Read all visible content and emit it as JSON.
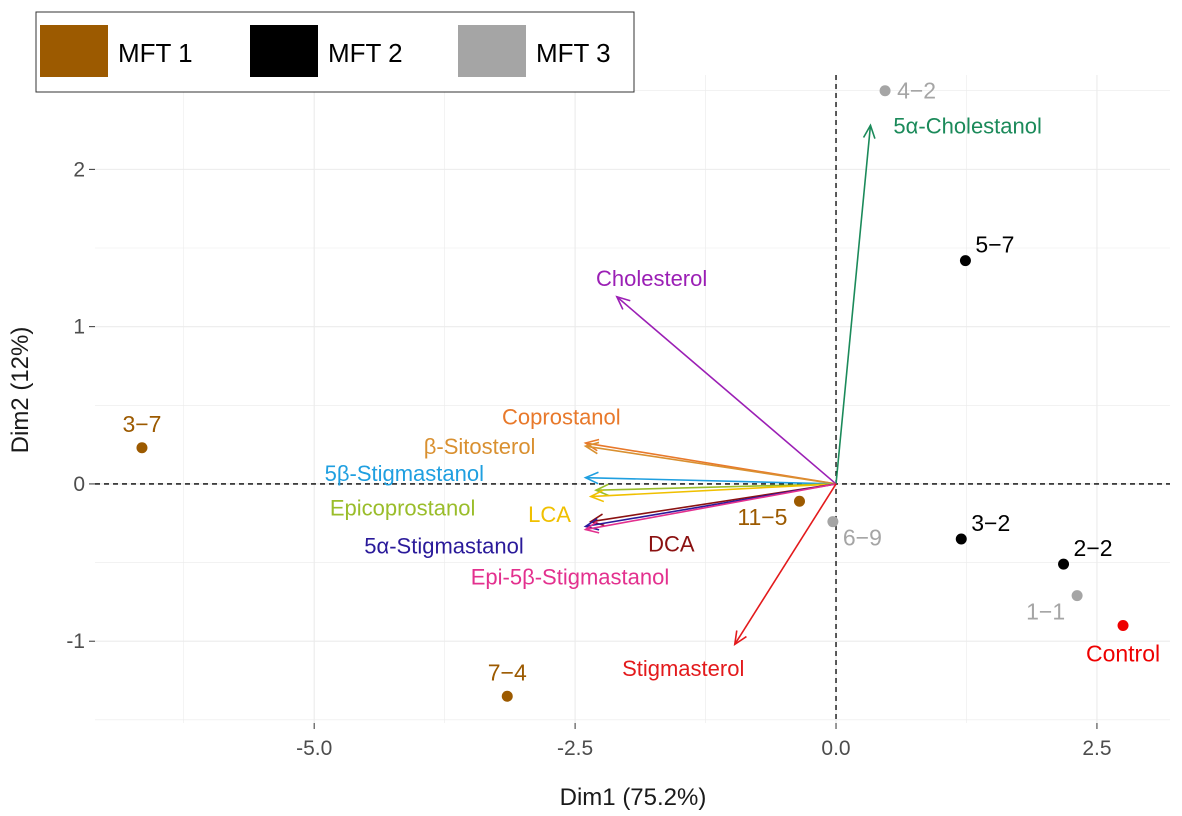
{
  "chart_data": {
    "type": "scatter",
    "subtype": "pca-biplot",
    "xlabel": "Dim1 (75.2%)",
    "ylabel": "Dim2 (12%)",
    "xlim": [
      -7.1,
      3.2
    ],
    "ylim": [
      -1.52,
      2.6
    ],
    "xticks": [
      -5.0,
      -2.5,
      0.0,
      2.5
    ],
    "xtick_labels": [
      "-5.0",
      "-2.5",
      "0.0",
      "2.5"
    ],
    "yticks": [
      -1,
      0,
      1,
      2
    ],
    "ytick_labels": [
      "-1",
      "0",
      "1",
      "2"
    ],
    "grid": true,
    "reference_lines": {
      "x": 0,
      "y": 0,
      "style": "dashed"
    },
    "legend": {
      "placement": "top-left",
      "entries": [
        {
          "name": "MFT 1",
          "color": "#9c5a00"
        },
        {
          "name": "MFT 2",
          "color": "#000000"
        },
        {
          "name": "MFT 3",
          "color": "#a5a5a5"
        }
      ]
    },
    "points": [
      {
        "label": "3−7",
        "x": -6.65,
        "y": 0.23,
        "color": "#9c5a00",
        "label_pos": "above"
      },
      {
        "label": "7−4",
        "x": -3.15,
        "y": -1.35,
        "color": "#9c5a00",
        "label_pos": "above"
      },
      {
        "label": "11−5",
        "x": -0.35,
        "y": -0.11,
        "color": "#9c5a00",
        "label_pos": "below-left"
      },
      {
        "label": "6−9",
        "x": -0.03,
        "y": -0.24,
        "color": "#a5a5a5",
        "label_pos": "below-right"
      },
      {
        "label": "4−2",
        "x": 0.47,
        "y": 2.5,
        "color": "#a5a5a5",
        "label_pos": "right"
      },
      {
        "label": "5−7",
        "x": 1.24,
        "y": 1.42,
        "color": "#000000",
        "label_pos": "above-right"
      },
      {
        "label": "3−2",
        "x": 1.2,
        "y": -0.35,
        "color": "#000000",
        "label_pos": "above-right"
      },
      {
        "label": "2−2",
        "x": 2.18,
        "y": -0.51,
        "color": "#000000",
        "label_pos": "above-right"
      },
      {
        "label": "1−1",
        "x": 2.31,
        "y": -0.71,
        "color": "#a5a5a5",
        "label_pos": "below-left"
      },
      {
        "label": "Control",
        "x": 2.75,
        "y": -0.9,
        "color": "#ee0000",
        "label_pos": "below"
      }
    ],
    "vectors": [
      {
        "name": "5α-Cholestanol",
        "x": 0.33,
        "y": 2.28,
        "color": "#1b8a5a",
        "label_x": 0.55,
        "label_y": 2.28,
        "anchor": "start"
      },
      {
        "name": "Cholesterol",
        "x": -2.1,
        "y": 1.19,
        "color": "#9b1fb5",
        "label_x": -2.3,
        "label_y": 1.31,
        "anchor": "start"
      },
      {
        "name": "Coprostanol",
        "x": -2.4,
        "y": 0.26,
        "color": "#e8792b",
        "label_x": -3.2,
        "label_y": 0.43,
        "anchor": "start"
      },
      {
        "name": "β-Sitosterol",
        "x": -2.4,
        "y": 0.24,
        "color": "#d99030",
        "label_x": -3.95,
        "label_y": 0.24,
        "anchor": "start"
      },
      {
        "name": "5β-Stigmastanol",
        "x": -2.4,
        "y": 0.04,
        "color": "#1f9fe0",
        "label_x": -4.9,
        "label_y": 0.07,
        "anchor": "start"
      },
      {
        "name": "Epicoprostanol",
        "x": -2.3,
        "y": -0.04,
        "color": "#9abd2a",
        "label_x": -4.85,
        "label_y": -0.15,
        "anchor": "start"
      },
      {
        "name": "LCA",
        "x": -2.35,
        "y": -0.08,
        "color": "#f0c000",
        "label_x": -2.95,
        "label_y": -0.19,
        "anchor": "start"
      },
      {
        "name": "DCA",
        "x": -2.35,
        "y": -0.24,
        "color": "#8b1111",
        "label_x": -1.8,
        "label_y": -0.38,
        "anchor": "start"
      },
      {
        "name": "5α-Stigmastanol",
        "x": -2.4,
        "y": -0.27,
        "color": "#2a1a9a",
        "label_x": -4.52,
        "label_y": -0.39,
        "anchor": "start"
      },
      {
        "name": "Epi-5β-Stigmastanol",
        "x": -2.4,
        "y": -0.29,
        "color": "#e3308e",
        "label_x": -3.5,
        "label_y": -0.59,
        "anchor": "start"
      },
      {
        "name": "Stigmasterol",
        "x": -0.97,
        "y": -1.02,
        "color": "#e31a1c",
        "label_x": -2.05,
        "label_y": -1.17,
        "anchor": "start"
      }
    ]
  }
}
